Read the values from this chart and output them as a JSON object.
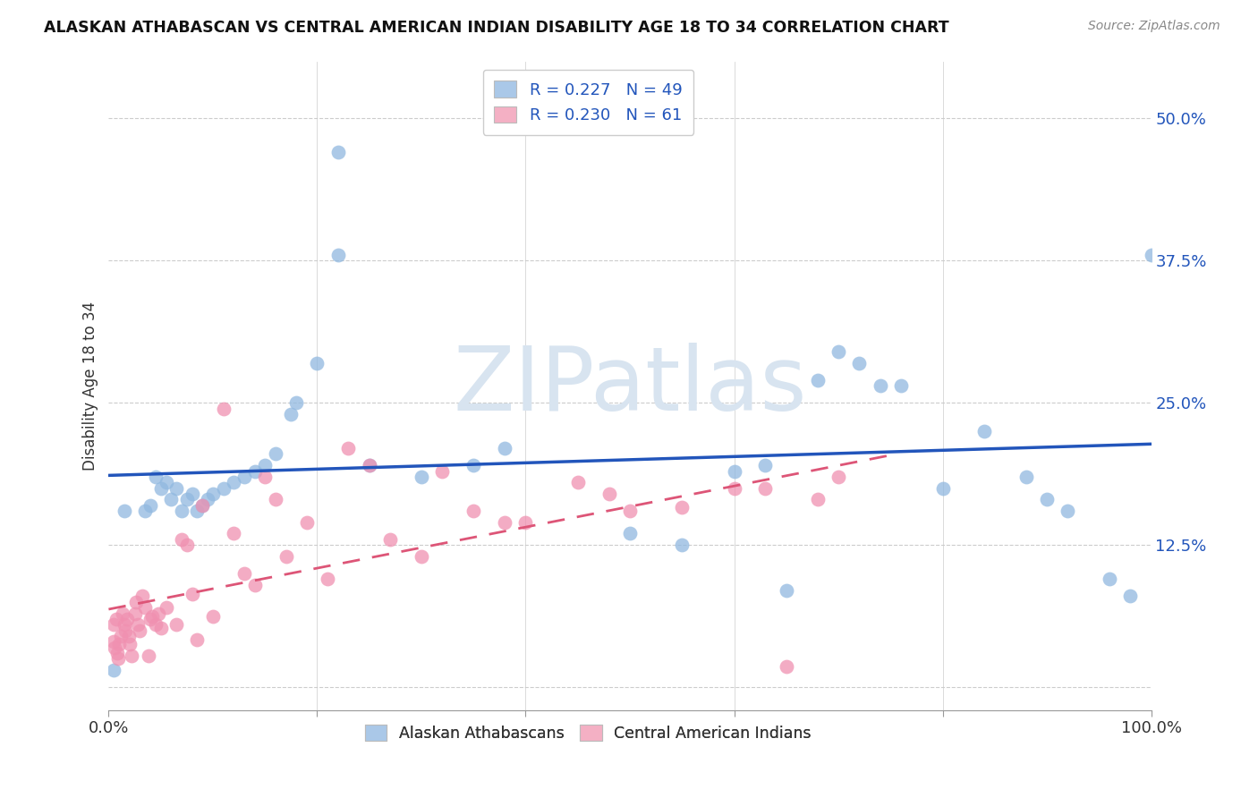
{
  "title": "ALASKAN ATHABASCAN VS CENTRAL AMERICAN INDIAN DISABILITY AGE 18 TO 34 CORRELATION CHART",
  "source": "Source: ZipAtlas.com",
  "ylabel": "Disability Age 18 to 34",
  "xlim": [
    0,
    1.0
  ],
  "ylim": [
    -0.02,
    0.55
  ],
  "xticks": [
    0.0,
    0.2,
    0.4,
    0.6,
    0.8,
    1.0
  ],
  "xticklabels": [
    "0.0%",
    "",
    "",
    "",
    "",
    "100.0%"
  ],
  "yticks": [
    0.0,
    0.125,
    0.25,
    0.375,
    0.5
  ],
  "yticklabels": [
    "",
    "12.5%",
    "25.0%",
    "37.5%",
    "50.0%"
  ],
  "legend_label1": "R = 0.227   N = 49",
  "legend_label2": "R = 0.230   N = 61",
  "legend_color1": "#aac8e8",
  "legend_color2": "#f4b0c4",
  "scatter_color1": "#90b8e0",
  "scatter_color2": "#f090b0",
  "line_color1": "#2255bb",
  "line_color2": "#dd5577",
  "watermark": "ZIPatlas",
  "watermark_color": "#d8e4f0",
  "blue_scatter_x": [
    0.22,
    0.22,
    0.2,
    0.18,
    0.175,
    0.16,
    0.15,
    0.14,
    0.13,
    0.12,
    0.11,
    0.1,
    0.095,
    0.09,
    0.085,
    0.08,
    0.075,
    0.07,
    0.065,
    0.06,
    0.055,
    0.05,
    0.045,
    0.04,
    0.035,
    0.25,
    0.3,
    0.35,
    0.38,
    0.6,
    0.63,
    0.68,
    0.7,
    0.72,
    0.74,
    0.76,
    0.8,
    0.84,
    0.88,
    0.9,
    0.92,
    0.96,
    0.98,
    1.0,
    0.5,
    0.55,
    0.65,
    0.005,
    0.015
  ],
  "blue_scatter_y": [
    0.47,
    0.38,
    0.285,
    0.25,
    0.24,
    0.205,
    0.195,
    0.19,
    0.185,
    0.18,
    0.175,
    0.17,
    0.165,
    0.16,
    0.155,
    0.17,
    0.165,
    0.155,
    0.175,
    0.165,
    0.18,
    0.175,
    0.185,
    0.16,
    0.155,
    0.195,
    0.185,
    0.195,
    0.21,
    0.19,
    0.195,
    0.27,
    0.295,
    0.285,
    0.265,
    0.265,
    0.175,
    0.225,
    0.185,
    0.165,
    0.155,
    0.095,
    0.08,
    0.38,
    0.135,
    0.125,
    0.085,
    0.015,
    0.155
  ],
  "pink_scatter_x": [
    0.005,
    0.005,
    0.006,
    0.007,
    0.008,
    0.009,
    0.01,
    0.012,
    0.013,
    0.015,
    0.016,
    0.018,
    0.019,
    0.02,
    0.022,
    0.025,
    0.026,
    0.028,
    0.03,
    0.032,
    0.035,
    0.038,
    0.04,
    0.042,
    0.045,
    0.048,
    0.05,
    0.055,
    0.065,
    0.07,
    0.075,
    0.08,
    0.085,
    0.09,
    0.1,
    0.11,
    0.12,
    0.13,
    0.14,
    0.15,
    0.16,
    0.17,
    0.19,
    0.21,
    0.23,
    0.25,
    0.27,
    0.3,
    0.32,
    0.35,
    0.38,
    0.4,
    0.45,
    0.48,
    0.5,
    0.55,
    0.6,
    0.63,
    0.65,
    0.68,
    0.7
  ],
  "pink_scatter_y": [
    0.055,
    0.04,
    0.035,
    0.06,
    0.03,
    0.025,
    0.038,
    0.045,
    0.065,
    0.055,
    0.05,
    0.06,
    0.045,
    0.038,
    0.028,
    0.065,
    0.075,
    0.055,
    0.05,
    0.08,
    0.07,
    0.028,
    0.06,
    0.062,
    0.055,
    0.065,
    0.052,
    0.07,
    0.055,
    0.13,
    0.125,
    0.082,
    0.042,
    0.16,
    0.062,
    0.245,
    0.135,
    0.1,
    0.09,
    0.185,
    0.165,
    0.115,
    0.145,
    0.095,
    0.21,
    0.195,
    0.13,
    0.115,
    0.19,
    0.155,
    0.145,
    0.145,
    0.18,
    0.17,
    0.155,
    0.158,
    0.175,
    0.175,
    0.018,
    0.165,
    0.185
  ]
}
